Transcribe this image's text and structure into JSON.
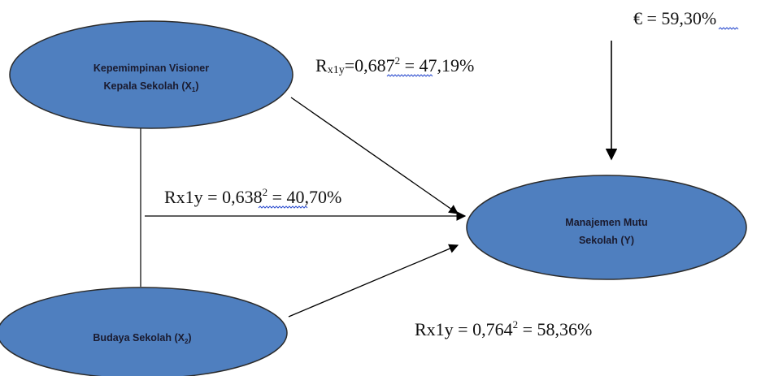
{
  "colors": {
    "node_fill": "#4f7fbf",
    "node_stroke": "#2b2b2b",
    "arrow": "#000000",
    "spell_underline": "#3050d0"
  },
  "nodes": {
    "x1": {
      "line1": "Kepemimpinan Visioner",
      "line2_prefix": "Kepala Sekolah (X",
      "line2_sub": "1",
      "line2_suffix": ")"
    },
    "x2": {
      "prefix": "Budaya Sekolah (X",
      "sub": "2",
      "suffix": ")"
    },
    "y": {
      "line1": "Manajemen Mutu",
      "line2": "Sekolah (Y)"
    }
  },
  "labels": {
    "error": {
      "symbol_eq": "€ = 59,",
      "underlined": "30",
      "suffix": "%"
    },
    "r_x1y": {
      "r": "R",
      "sub": "x1y",
      "eq": "=0,",
      "underlined": "687",
      "sup": "2",
      "rest": " = 47,19%"
    },
    "r_combined": {
      "prefix": "Rx1y = 0,",
      "underlined": "638",
      "sup": "2",
      "rest": " = 40,70%"
    },
    "r_x2y": {
      "prefix": "Rx1y = 0,764",
      "sup": "2",
      "rest": " = 58,36%"
    }
  }
}
